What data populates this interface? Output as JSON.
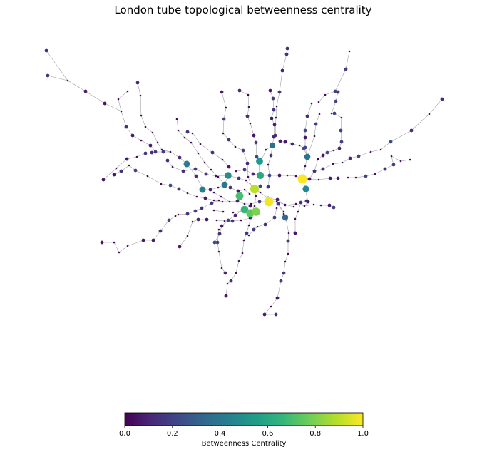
{
  "title": "London tube topological betweenness centrality",
  "colorbar": {
    "label": "Betweenness Centrality",
    "min": 0.0,
    "max": 1.0,
    "ticks": [
      "0.0",
      "0.2",
      "0.4",
      "0.6",
      "0.8",
      "1.0"
    ],
    "colormap": "viridis",
    "stops": [
      "#440154",
      "#482878",
      "#3e4989",
      "#31688e",
      "#26828e",
      "#1f9e89",
      "#35b779",
      "#6ece58",
      "#b5de2b",
      "#fde725"
    ]
  },
  "network": {
    "edge_color": "#9a9a9a",
    "hubs": [
      {
        "name": "h1",
        "value": 1.0
      },
      {
        "name": "h2",
        "value": 0.98
      },
      {
        "name": "h3",
        "value": 0.9
      },
      {
        "name": "h4",
        "value": 0.8
      },
      {
        "name": "h5",
        "value": 0.74
      },
      {
        "name": "h6",
        "value": 0.7
      },
      {
        "name": "h7",
        "value": 0.66
      },
      {
        "name": "h8",
        "value": 0.6
      },
      {
        "name": "h9",
        "value": 0.55
      },
      {
        "name": "h10",
        "value": 0.5
      },
      {
        "name": "h11",
        "value": 0.46
      },
      {
        "name": "h12",
        "value": 0.44
      },
      {
        "name": "h13",
        "value": 0.42
      },
      {
        "name": "h14",
        "value": 0.4
      },
      {
        "name": "h15",
        "value": 0.38
      },
      {
        "name": "h16",
        "value": 0.36
      },
      {
        "name": "h17",
        "value": 0.34
      }
    ]
  }
}
